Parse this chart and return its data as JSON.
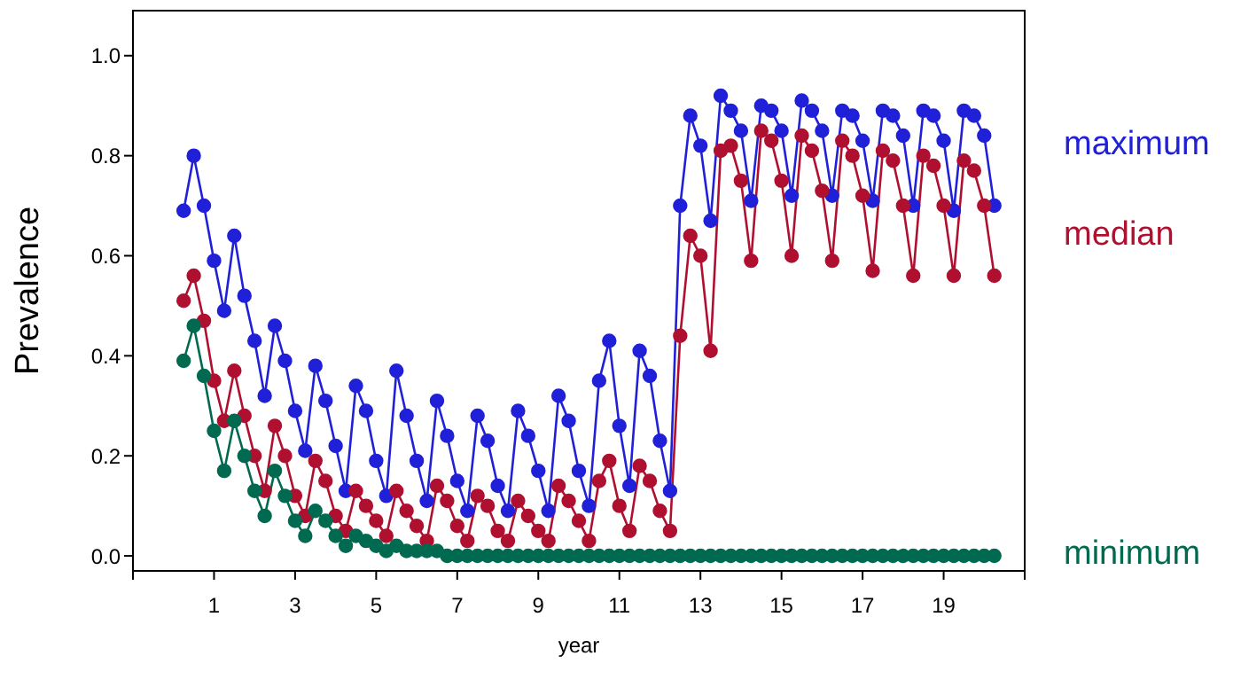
{
  "chart_data": {
    "type": "line",
    "xlabel": "year",
    "ylabel": "Prevalence",
    "x": [
      0.25,
      0.5,
      0.75,
      1,
      1.25,
      1.5,
      1.75,
      2,
      2.25,
      2.5,
      2.75,
      3,
      3.25,
      3.5,
      3.75,
      4,
      4.25,
      4.5,
      4.75,
      5,
      5.25,
      5.5,
      5.75,
      6,
      6.25,
      6.5,
      6.75,
      7,
      7.25,
      7.5,
      7.75,
      8,
      8.25,
      8.5,
      8.75,
      9,
      9.25,
      9.5,
      9.75,
      10,
      10.25,
      10.5,
      10.75,
      11,
      11.25,
      11.5,
      11.75,
      12,
      12.25,
      12.5,
      12.75,
      13,
      13.25,
      13.5,
      13.75,
      14,
      14.25,
      14.5,
      14.75,
      15,
      15.25,
      15.5,
      15.75,
      16,
      16.25,
      16.5,
      16.75,
      17,
      17.25,
      17.5,
      17.75,
      18,
      18.25,
      18.5,
      18.75,
      19,
      19.25,
      19.5,
      19.75,
      20,
      20.25
    ],
    "series": [
      {
        "name": "maximum",
        "color": "#2020d8",
        "values": [
          0.69,
          0.8,
          0.7,
          0.59,
          0.49,
          0.64,
          0.52,
          0.43,
          0.32,
          0.46,
          0.39,
          0.29,
          0.21,
          0.38,
          0.31,
          0.22,
          0.13,
          0.34,
          0.29,
          0.19,
          0.12,
          0.37,
          0.28,
          0.19,
          0.11,
          0.31,
          0.24,
          0.15,
          0.09,
          0.28,
          0.23,
          0.14,
          0.09,
          0.29,
          0.24,
          0.17,
          0.09,
          0.32,
          0.27,
          0.17,
          0.1,
          0.35,
          0.43,
          0.26,
          0.14,
          0.41,
          0.36,
          0.23,
          0.13,
          0.7,
          0.88,
          0.82,
          0.67,
          0.92,
          0.89,
          0.85,
          0.71,
          0.9,
          0.89,
          0.85,
          0.72,
          0.91,
          0.89,
          0.85,
          0.72,
          0.89,
          0.88,
          0.83,
          0.71,
          0.89,
          0.88,
          0.84,
          0.7,
          0.89,
          0.88,
          0.83,
          0.69,
          0.89,
          0.88,
          0.84,
          0.7
        ]
      },
      {
        "name": "median",
        "color": "#b01030",
        "values": [
          0.51,
          0.56,
          0.47,
          0.35,
          0.27,
          0.37,
          0.28,
          0.2,
          0.13,
          0.26,
          0.2,
          0.12,
          0.08,
          0.19,
          0.15,
          0.08,
          0.05,
          0.13,
          0.1,
          0.07,
          0.04,
          0.13,
          0.09,
          0.06,
          0.03,
          0.14,
          0.11,
          0.06,
          0.03,
          0.12,
          0.1,
          0.05,
          0.03,
          0.11,
          0.08,
          0.05,
          0.03,
          0.14,
          0.11,
          0.07,
          0.03,
          0.15,
          0.19,
          0.1,
          0.05,
          0.18,
          0.15,
          0.09,
          0.05,
          0.44,
          0.64,
          0.6,
          0.41,
          0.81,
          0.82,
          0.75,
          0.59,
          0.85,
          0.83,
          0.75,
          0.6,
          0.84,
          0.81,
          0.73,
          0.59,
          0.83,
          0.8,
          0.72,
          0.57,
          0.81,
          0.79,
          0.7,
          0.56,
          0.8,
          0.78,
          0.7,
          0.56,
          0.79,
          0.77,
          0.7,
          0.56
        ]
      },
      {
        "name": "minimum",
        "color": "#006a50",
        "values": [
          0.39,
          0.46,
          0.36,
          0.25,
          0.17,
          0.27,
          0.2,
          0.13,
          0.08,
          0.17,
          0.12,
          0.07,
          0.04,
          0.09,
          0.07,
          0.04,
          0.02,
          0.04,
          0.03,
          0.02,
          0.01,
          0.02,
          0.01,
          0.01,
          0.01,
          0.01,
          0,
          0,
          0,
          0,
          0,
          0,
          0,
          0,
          0,
          0,
          0,
          0,
          0,
          0,
          0,
          0,
          0,
          0,
          0,
          0,
          0,
          0,
          0,
          0,
          0,
          0,
          0,
          0,
          0,
          0,
          0,
          0,
          0,
          0,
          0,
          0,
          0,
          0,
          0,
          0,
          0,
          0,
          0,
          0,
          0,
          0,
          0,
          0,
          0,
          0,
          0,
          0,
          0,
          0,
          0
        ]
      }
    ],
    "xlim": [
      -1,
      21
    ],
    "xticks": [
      {
        "value": -1,
        "label": null
      },
      1,
      3,
      5,
      7,
      9,
      11,
      13,
      15,
      17,
      19,
      {
        "value": 21,
        "label": null
      }
    ],
    "ylim": [
      -0.03,
      1.09
    ],
    "yticks": [
      {
        "value": 0,
        "label": "0.0"
      },
      {
        "value": 0.2,
        "label": "0.2"
      },
      {
        "value": 0.4,
        "label": "0.4"
      },
      {
        "value": 0.6,
        "label": "0.6"
      },
      {
        "value": 0.8,
        "label": "0.8"
      },
      {
        "value": 1,
        "label": "1.0"
      }
    ],
    "marker": "circle",
    "line_style": "solid",
    "legend": "right",
    "grid": false
  }
}
